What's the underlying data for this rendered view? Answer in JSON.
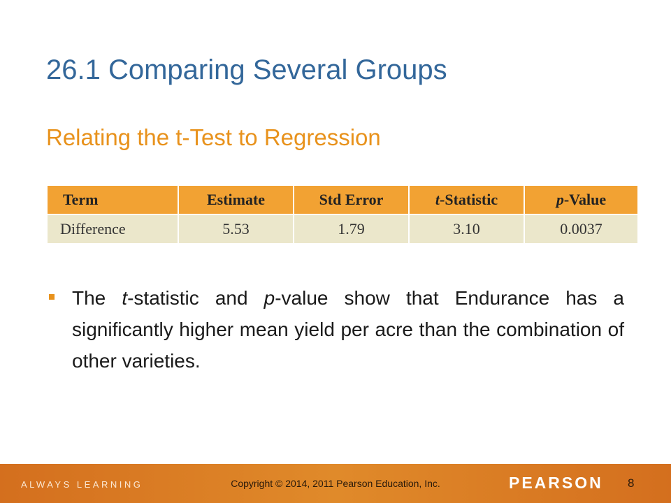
{
  "title": "26.1 Comparing Several Groups",
  "subtitle": "Relating the t-Test to Regression",
  "table": {
    "header": [
      [
        {
          "text": "Term",
          "italic": false
        }
      ],
      [
        {
          "text": "Estimate",
          "italic": false
        }
      ],
      [
        {
          "text": "Std Error",
          "italic": false
        }
      ],
      [
        {
          "text": "t",
          "italic": true
        },
        {
          "text": "-Statistic",
          "italic": false
        }
      ],
      [
        {
          "text": "p",
          "italic": true
        },
        {
          "text": "-Value",
          "italic": false
        }
      ]
    ],
    "rows": [
      [
        "Difference",
        "5.53",
        "1.79",
        "3.10",
        "0.0037"
      ]
    ]
  },
  "bullet": [
    {
      "text": "The ",
      "italic": false
    },
    {
      "text": "t",
      "italic": true
    },
    {
      "text": "-statistic and ",
      "italic": false
    },
    {
      "text": "p",
      "italic": true
    },
    {
      "text": "-value show that Endurance has a significantly higher mean yield per acre than the combination of other varieties.",
      "italic": false
    }
  ],
  "footer": {
    "left": "ALWAYS LEARNING",
    "copyright": "Copyright © 2014, 2011 Pearson Education, Inc.",
    "brand": "PEARSON",
    "page": "8"
  }
}
